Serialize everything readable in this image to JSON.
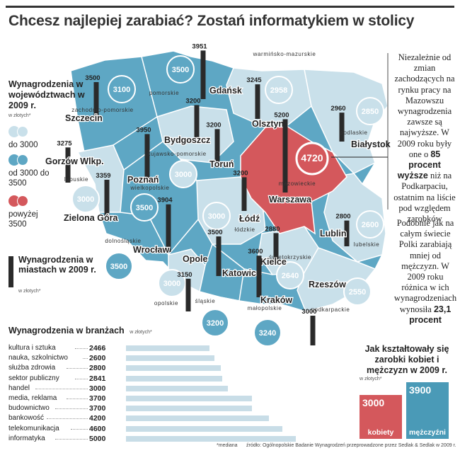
{
  "headline": "Chcesz najlepiej zarabiać? Zostań informatykiem w stolicy",
  "colors": {
    "low": "#c9e0ea",
    "mid": "#5ea7c4",
    "high": "#d4585c",
    "bar": "#2a2a2a",
    "branch_bar": "#c8dde7",
    "women": "#d4585c",
    "men": "#4a9ab7"
  },
  "legend": {
    "title": "Wynagrodzenia w województwach w 2009 r.",
    "unit": "w złotych*",
    "items": [
      "do 3000",
      "od 3000 do 3500",
      "powyżej 3500"
    ]
  },
  "city_legend": {
    "title": "Wynagrodzenia w miastach w 2009 r.",
    "unit": "w złotych*"
  },
  "side_text_1": {
    "pre": "Niezależnie od zmian zachodzących na rynku pracy na Mazowszu wynagrodzenia zawsze są najwyższe. W 2009 roku były one o",
    "bold": "85 procent wyższe",
    "post": "niż na Podkarpaciu, ostatnim na liście pod względem zarobków"
  },
  "side_text_2": {
    "pre": "Podobnie jak na całym świecie Polki zarabiają mniej od mężczyzn. W 2009 roku różnica w ich wynagrodzeniach wynosiła",
    "bold": "23,1 procent"
  },
  "branch": {
    "title": "Wynagrodzenia w branżach",
    "unit": "w złotych*"
  },
  "gender": {
    "title": "Jak kształtowały się zarobki kobiet i mężczyzn w 2009 r.",
    "unit": "w złotych*"
  },
  "footer": {
    "median": "*mediana",
    "source": "źródło: Ogólnopolskie Badanie Wynagrodzeń przeprowadzone przez Sedlak & Sedlak w 2009 r."
  },
  "chart_data": [
    {
      "type": "map",
      "title": "Wynagrodzenia w województwach w 2009 r.",
      "unit": "w złotych*",
      "regions": [
        {
          "name": "pomorskie",
          "value": 3500
        },
        {
          "name": "zachodnio-pomorskie",
          "value": 3100
        },
        {
          "name": "warmińsko-mazurskie",
          "value": 2958
        },
        {
          "name": "podlaskie",
          "value": 2850
        },
        {
          "name": "kujawsko-pomorskie",
          "value": 3000
        },
        {
          "name": "lubuskie",
          "value": 3000
        },
        {
          "name": "wielkopolskie",
          "value": 3500
        },
        {
          "name": "mazowieckie",
          "value": 4720
        },
        {
          "name": "łódzkie",
          "value": 3000
        },
        {
          "name": "lubelskie",
          "value": 2600
        },
        {
          "name": "dolnośląskie",
          "value": 3500
        },
        {
          "name": "opolskie",
          "value": 3000
        },
        {
          "name": "świętokrzyskie",
          "value": 2640
        },
        {
          "name": "śląskie",
          "value": 3200
        },
        {
          "name": "małopolskie",
          "value": 3240
        },
        {
          "name": "podkarpackie",
          "value": 2550
        }
      ]
    },
    {
      "type": "bar",
      "title": "Wynagrodzenia w miastach w 2009 r.",
      "unit": "w złotych*",
      "cities": [
        {
          "name": "Gdańsk",
          "value": 3951
        },
        {
          "name": "Szczecin",
          "value": 3500
        },
        {
          "name": "Olsztyn",
          "value": 3245
        },
        {
          "name": "Białystok",
          "value": 2960
        },
        {
          "name": "Bydgoszcz",
          "value": 3200
        },
        {
          "name": "Toruń",
          "value": 3200
        },
        {
          "name": "Gorzów Wlkp.",
          "value": 3275
        },
        {
          "name": "Poznań",
          "value": 3950
        },
        {
          "name": "Warszawa",
          "value": 5200
        },
        {
          "name": "Zielona Góra",
          "value": 3359
        },
        {
          "name": "Łódź",
          "value": 3200
        },
        {
          "name": "Lublin",
          "value": 2800
        },
        {
          "name": "Wrocław",
          "value": 3904
        },
        {
          "name": "Kielce",
          "value": 2880
        },
        {
          "name": "Opole",
          "value": 3150
        },
        {
          "name": "Katowice",
          "value": 3500
        },
        {
          "name": "Kraków",
          "value": 3600
        },
        {
          "name": "Rzeszów",
          "value": 3000
        }
      ]
    },
    {
      "type": "bar",
      "title": "Wynagrodzenia w branżach",
      "unit": "w złotych*",
      "categories": [
        "kultura i sztuka",
        "nauka, szkolnictwo",
        "służba zdrowia",
        "sektor publiczny",
        "handel",
        "media, reklama",
        "budownictwo",
        "bankowość",
        "telekomunikacja",
        "informatyka"
      ],
      "values": [
        2466,
        2600,
        2800,
        2841,
        3000,
        3700,
        3700,
        4200,
        4600,
        5000
      ]
    },
    {
      "type": "bar",
      "title": "Jak kształtowały się zarobki kobiet i mężczyzn w 2009 r.",
      "unit": "w złotych*",
      "categories": [
        "kobiety",
        "mężczyźni"
      ],
      "values": [
        3000,
        3900
      ]
    }
  ]
}
